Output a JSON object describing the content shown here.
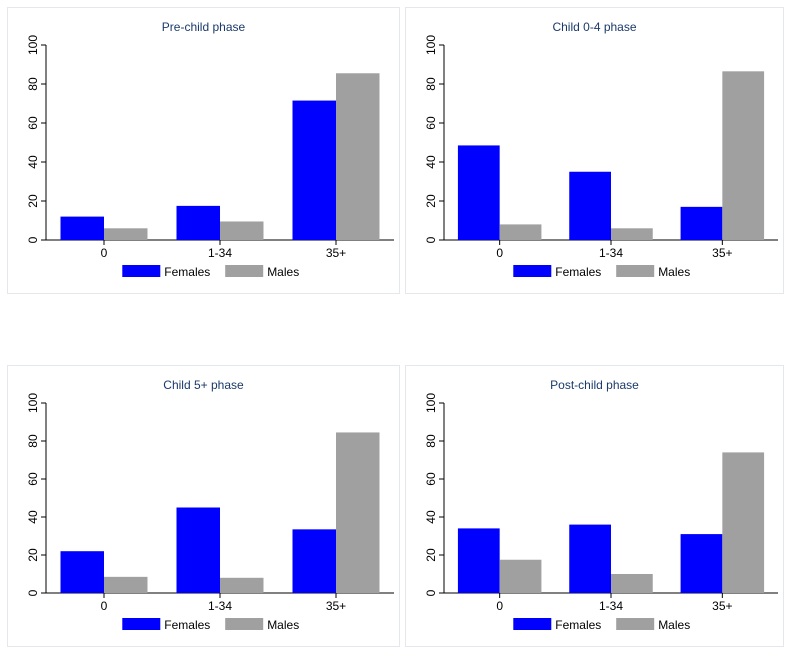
{
  "colors": {
    "Females": "#0000ff",
    "Males": "#a0a0a0",
    "axis": "#000000",
    "title": "#1a3a6b"
  },
  "chart_data": [
    {
      "type": "bar",
      "title": "Pre-child phase",
      "categories": [
        "0",
        "1-34",
        "35+"
      ],
      "series": [
        {
          "name": "Females",
          "values": [
            12,
            17.5,
            71.5
          ]
        },
        {
          "name": "Males",
          "values": [
            6,
            9.5,
            85.5
          ]
        }
      ],
      "ylim": [
        0,
        100
      ],
      "yticks": [
        "0",
        "20",
        "40",
        "60",
        "80",
        "100"
      ],
      "xlabel": "",
      "ylabel": "",
      "grid": false,
      "legend": "bottom"
    },
    {
      "type": "bar",
      "title": "Child 0-4 phase",
      "categories": [
        "0",
        "1-34",
        "35+"
      ],
      "series": [
        {
          "name": "Females",
          "values": [
            48.5,
            35,
            17
          ]
        },
        {
          "name": "Males",
          "values": [
            8,
            6,
            86.5
          ]
        }
      ],
      "ylim": [
        0,
        100
      ],
      "yticks": [
        "0",
        "20",
        "40",
        "60",
        "80",
        "100"
      ],
      "xlabel": "",
      "ylabel": "",
      "grid": false,
      "legend": "bottom"
    },
    {
      "type": "bar",
      "title": "Child 5+ phase",
      "categories": [
        "0",
        "1-34",
        "35+"
      ],
      "series": [
        {
          "name": "Females",
          "values": [
            22,
            45,
            33.5
          ]
        },
        {
          "name": "Males",
          "values": [
            8.5,
            8,
            84.5
          ]
        }
      ],
      "ylim": [
        0,
        100
      ],
      "yticks": [
        "0",
        "20",
        "40",
        "60",
        "80",
        "100"
      ],
      "xlabel": "",
      "ylabel": "",
      "grid": false,
      "legend": "bottom"
    },
    {
      "type": "bar",
      "title": "Post-child phase",
      "categories": [
        "0",
        "1-34",
        "35+"
      ],
      "series": [
        {
          "name": "Females",
          "values": [
            34,
            36,
            31
          ]
        },
        {
          "name": "Males",
          "values": [
            17.5,
            10,
            74
          ]
        }
      ],
      "ylim": [
        0,
        100
      ],
      "yticks": [
        "0",
        "20",
        "40",
        "60",
        "80",
        "100"
      ],
      "xlabel": "",
      "ylabel": "",
      "grid": false,
      "legend": "bottom"
    }
  ]
}
